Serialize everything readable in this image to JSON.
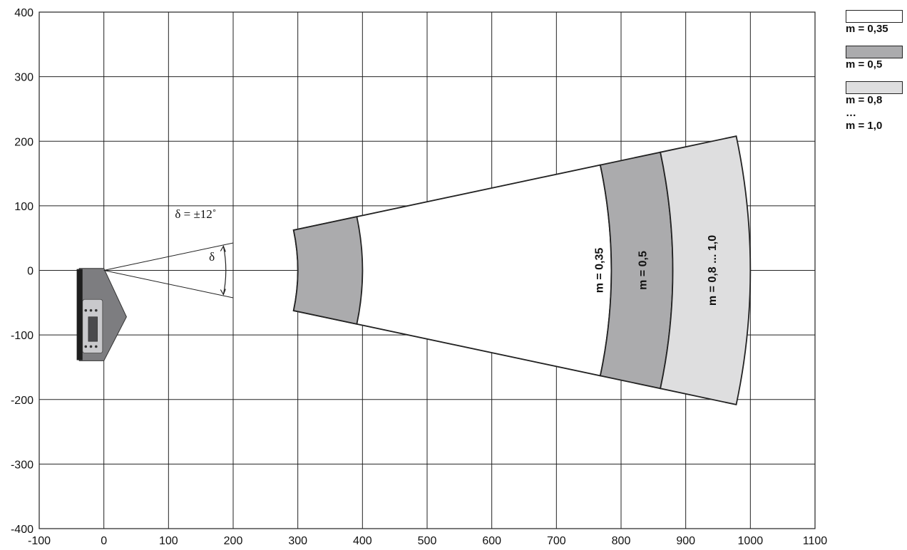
{
  "chart_data": {
    "type": "area",
    "xlim": [
      -100,
      1100
    ],
    "ylim": [
      -400,
      400
    ],
    "x_ticks": [
      "-100",
      "0",
      "100",
      "200",
      "300",
      "400",
      "500",
      "600",
      "700",
      "800",
      "900",
      "1000",
      "1100"
    ],
    "y_ticks": [
      "400",
      "300",
      "200",
      "100",
      "0",
      "-100",
      "-200",
      "-300",
      "-400"
    ],
    "grid": true,
    "legend_position": "top-right",
    "angle_label": "δ = ±12˚",
    "delta_symbol": "δ",
    "half_angle_deg": 12,
    "zones": [
      {
        "name": "m = 0,35",
        "r_inner": 300,
        "r_outer": 785,
        "fill": "#ffffff",
        "label": "m = 0,35"
      },
      {
        "name": "m = 0,5",
        "r_inner": 785,
        "r_outer": 880,
        "fill": "#ababad",
        "label": "m = 0,5"
      },
      {
        "name": "m = 0,8 ... 1,0",
        "r_inner": 880,
        "r_outer": 1000,
        "fill": "#dededf",
        "label": "m = 0,8 ... 1,0"
      },
      {
        "name": "near",
        "r_inner": 300,
        "r_outer": 400,
        "fill": "#ababad",
        "label": ""
      }
    ]
  },
  "legend": [
    {
      "fill": "#ffffff",
      "lines": [
        "m = 0,35"
      ]
    },
    {
      "fill": "#ababad",
      "lines": [
        "m = 0,5"
      ]
    },
    {
      "fill": "#dededf",
      "lines": [
        "m = 0,8",
        "…",
        "m = 1,0"
      ]
    }
  ]
}
